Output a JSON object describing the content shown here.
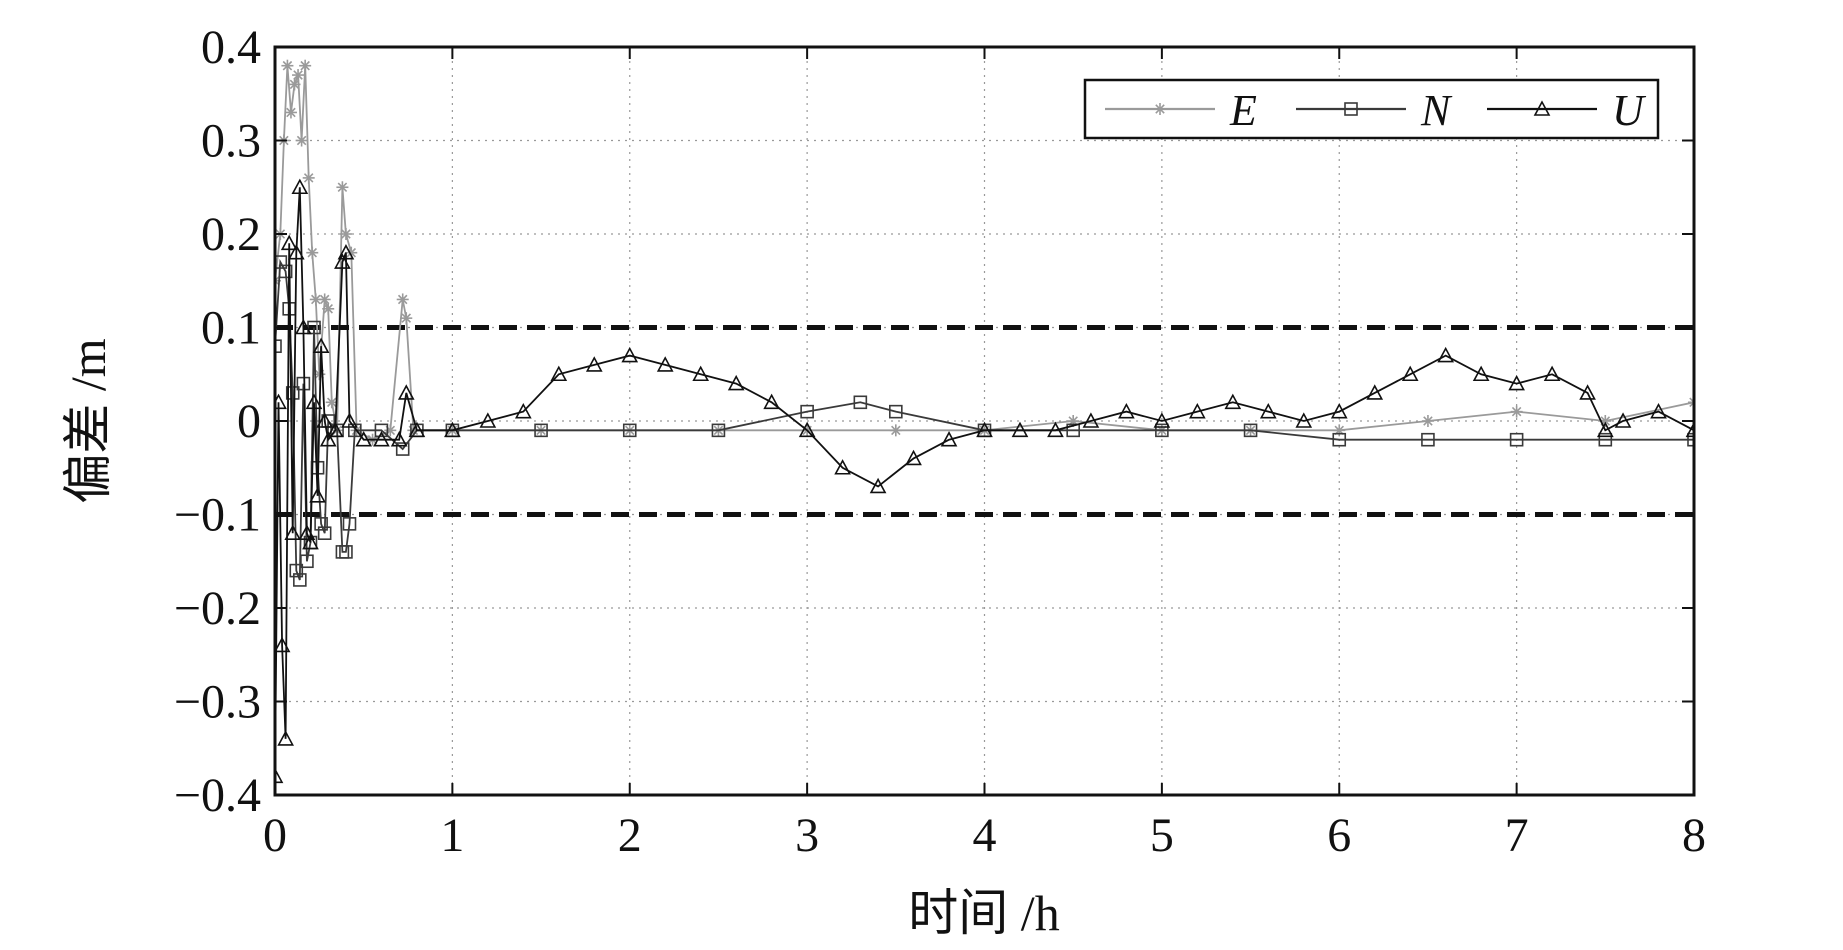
{
  "chart_data": {
    "type": "line",
    "title": "",
    "xlabel": "时间 /h",
    "ylabel": "偏差 /m",
    "xlim": [
      0,
      8
    ],
    "ylim": [
      -0.4,
      0.4
    ],
    "x_ticks": [
      "0",
      "1",
      "2",
      "3",
      "4",
      "5",
      "6",
      "7",
      "8"
    ],
    "y_ticks": [
      "0.4",
      "0.3",
      "0.2",
      "0.1",
      "0",
      "−0.1",
      "−0.2",
      "−0.3",
      "−0.4"
    ],
    "y_tick_values": [
      0.4,
      0.3,
      0.2,
      0.1,
      0,
      -0.1,
      -0.2,
      -0.3,
      -0.4
    ],
    "grid": "dotted",
    "legend_position": "top-right",
    "threshold_lines": [
      0.1,
      -0.1
    ],
    "series": [
      {
        "name": "E",
        "marker": "star",
        "color": "#9a9a9a",
        "points": [
          [
            0.0,
            0.15
          ],
          [
            0.03,
            0.2
          ],
          [
            0.05,
            0.3
          ],
          [
            0.07,
            0.38
          ],
          [
            0.09,
            0.33
          ],
          [
            0.11,
            0.36
          ],
          [
            0.13,
            0.37
          ],
          [
            0.15,
            0.3
          ],
          [
            0.17,
            0.38
          ],
          [
            0.19,
            0.26
          ],
          [
            0.21,
            0.18
          ],
          [
            0.23,
            0.13
          ],
          [
            0.25,
            0.05
          ],
          [
            0.28,
            0.13
          ],
          [
            0.3,
            0.12
          ],
          [
            0.32,
            0.02
          ],
          [
            0.35,
            -0.01
          ],
          [
            0.38,
            0.25
          ],
          [
            0.4,
            0.2
          ],
          [
            0.43,
            0.18
          ],
          [
            0.46,
            -0.01
          ],
          [
            0.55,
            -0.02
          ],
          [
            0.65,
            -0.01
          ],
          [
            0.72,
            0.13
          ],
          [
            0.74,
            0.11
          ],
          [
            0.78,
            -0.01
          ],
          [
            1.0,
            -0.01
          ],
          [
            1.5,
            -0.01
          ],
          [
            2.0,
            -0.01
          ],
          [
            2.5,
            -0.01
          ],
          [
            3.0,
            -0.01
          ],
          [
            3.5,
            -0.01
          ],
          [
            4.0,
            -0.01
          ],
          [
            4.5,
            0.0
          ],
          [
            5.0,
            -0.01
          ],
          [
            5.5,
            -0.01
          ],
          [
            6.0,
            -0.01
          ],
          [
            6.5,
            0.0
          ],
          [
            7.0,
            0.01
          ],
          [
            7.5,
            0.0
          ],
          [
            8.0,
            0.02
          ]
        ]
      },
      {
        "name": "N",
        "marker": "square",
        "color": "#3a3a3a",
        "points": [
          [
            0.0,
            0.08
          ],
          [
            0.03,
            0.17
          ],
          [
            0.06,
            0.16
          ],
          [
            0.08,
            0.12
          ],
          [
            0.1,
            0.03
          ],
          [
            0.12,
            -0.16
          ],
          [
            0.14,
            -0.17
          ],
          [
            0.16,
            0.04
          ],
          [
            0.18,
            -0.15
          ],
          [
            0.2,
            -0.13
          ],
          [
            0.22,
            0.1
          ],
          [
            0.24,
            -0.05
          ],
          [
            0.26,
            -0.11
          ],
          [
            0.28,
            -0.12
          ],
          [
            0.3,
            0.0
          ],
          [
            0.35,
            -0.01
          ],
          [
            0.38,
            -0.14
          ],
          [
            0.4,
            -0.14
          ],
          [
            0.42,
            -0.11
          ],
          [
            0.45,
            -0.01
          ],
          [
            0.6,
            -0.01
          ],
          [
            0.72,
            -0.03
          ],
          [
            0.8,
            -0.01
          ],
          [
            1.0,
            -0.01
          ],
          [
            1.5,
            -0.01
          ],
          [
            2.0,
            -0.01
          ],
          [
            2.5,
            -0.01
          ],
          [
            3.0,
            0.01
          ],
          [
            3.3,
            0.02
          ],
          [
            3.5,
            0.01
          ],
          [
            4.0,
            -0.01
          ],
          [
            4.5,
            -0.01
          ],
          [
            5.0,
            -0.01
          ],
          [
            5.5,
            -0.01
          ],
          [
            6.0,
            -0.02
          ],
          [
            6.5,
            -0.02
          ],
          [
            7.0,
            -0.02
          ],
          [
            7.5,
            -0.02
          ],
          [
            8.0,
            -0.02
          ]
        ]
      },
      {
        "name": "U",
        "marker": "triangle",
        "color": "#111111",
        "points": [
          [
            0.0,
            -0.38
          ],
          [
            0.02,
            0.02
          ],
          [
            0.04,
            -0.24
          ],
          [
            0.06,
            -0.34
          ],
          [
            0.08,
            0.19
          ],
          [
            0.1,
            -0.12
          ],
          [
            0.12,
            0.18
          ],
          [
            0.14,
            0.25
          ],
          [
            0.16,
            0.1
          ],
          [
            0.18,
            -0.12
          ],
          [
            0.2,
            -0.13
          ],
          [
            0.22,
            0.02
          ],
          [
            0.24,
            -0.08
          ],
          [
            0.26,
            0.08
          ],
          [
            0.28,
            0.0
          ],
          [
            0.3,
            -0.02
          ],
          [
            0.34,
            -0.01
          ],
          [
            0.38,
            0.17
          ],
          [
            0.4,
            0.18
          ],
          [
            0.42,
            0.0
          ],
          [
            0.5,
            -0.02
          ],
          [
            0.6,
            -0.02
          ],
          [
            0.7,
            -0.02
          ],
          [
            0.74,
            0.03
          ],
          [
            0.8,
            -0.01
          ],
          [
            1.0,
            -0.01
          ],
          [
            1.2,
            0.0
          ],
          [
            1.4,
            0.01
          ],
          [
            1.6,
            0.05
          ],
          [
            1.8,
            0.06
          ],
          [
            2.0,
            0.07
          ],
          [
            2.2,
            0.06
          ],
          [
            2.4,
            0.05
          ],
          [
            2.6,
            0.04
          ],
          [
            2.8,
            0.02
          ],
          [
            3.0,
            -0.01
          ],
          [
            3.2,
            -0.05
          ],
          [
            3.4,
            -0.07
          ],
          [
            3.6,
            -0.04
          ],
          [
            3.8,
            -0.02
          ],
          [
            4.0,
            -0.01
          ],
          [
            4.2,
            -0.01
          ],
          [
            4.4,
            -0.01
          ],
          [
            4.6,
            0.0
          ],
          [
            4.8,
            0.01
          ],
          [
            5.0,
            0.0
          ],
          [
            5.2,
            0.01
          ],
          [
            5.4,
            0.02
          ],
          [
            5.6,
            0.01
          ],
          [
            5.8,
            0.0
          ],
          [
            6.0,
            0.01
          ],
          [
            6.2,
            0.03
          ],
          [
            6.4,
            0.05
          ],
          [
            6.6,
            0.07
          ],
          [
            6.8,
            0.05
          ],
          [
            7.0,
            0.04
          ],
          [
            7.2,
            0.05
          ],
          [
            7.4,
            0.03
          ],
          [
            7.5,
            -0.01
          ],
          [
            7.6,
            0.0
          ],
          [
            7.8,
            0.01
          ],
          [
            8.0,
            -0.01
          ]
        ]
      }
    ]
  }
}
